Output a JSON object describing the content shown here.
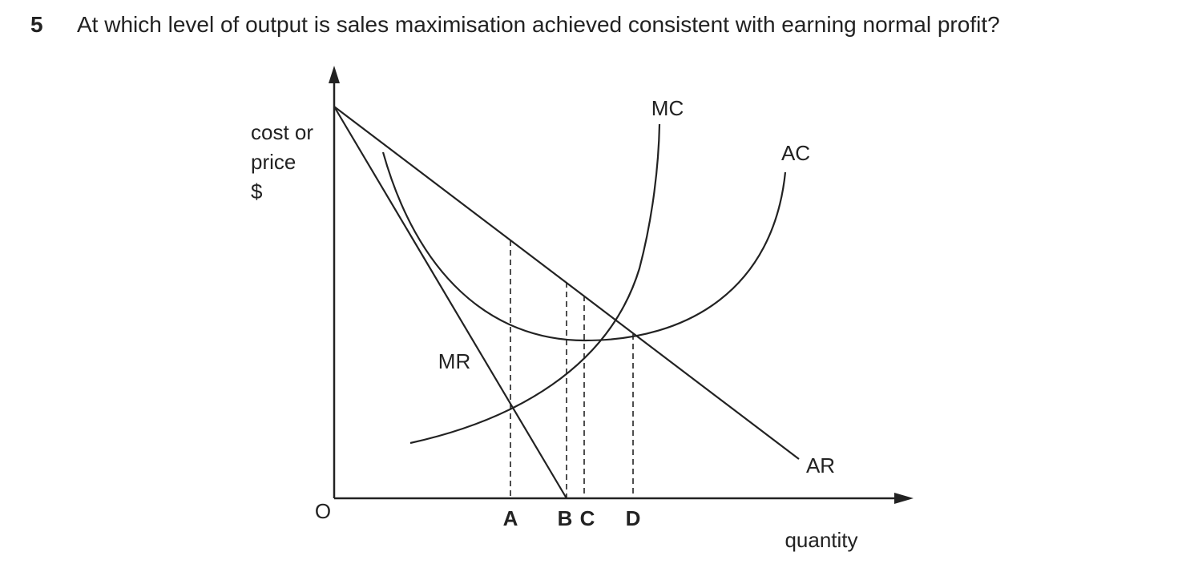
{
  "question": {
    "number": "5",
    "text": "At which level of output is sales maximisation achieved consistent with earning normal profit?"
  },
  "diagram": {
    "y_axis_label": [
      "cost or",
      "price",
      "$"
    ],
    "x_axis_label": "quantity",
    "origin": "O",
    "curve_labels": {
      "mc": "MC",
      "ac": "AC",
      "mr": "MR",
      "ar": "AR"
    },
    "points": [
      "A",
      "B",
      "C",
      "D"
    ]
  }
}
